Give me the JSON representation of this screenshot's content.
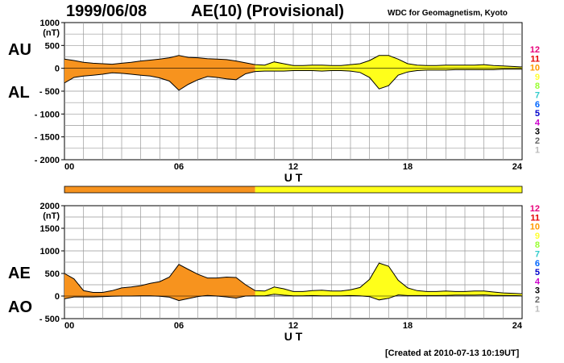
{
  "header": {
    "date": "1999/06/08",
    "index": "AE(10) (Provisional)",
    "source": "WDC for Geomagnetism, Kyoto"
  },
  "footer": "[Created at 2010-07-13 10:19UT]",
  "colors": {
    "completed": "#f7931e",
    "provisional_part": "#ffff1a",
    "outline": "#000000",
    "grid": "#999999"
  },
  "legend": {
    "labels": [
      "12",
      "11",
      "10",
      "9",
      "8",
      "7",
      "6",
      "5",
      "4",
      "3",
      "2",
      "1"
    ],
    "colors": [
      "#e8007a",
      "#e60000",
      "#ff9900",
      "#ffff33",
      "#99ff33",
      "#33cccc",
      "#0066ff",
      "#0000cc",
      "#cc00cc",
      "#000000",
      "#666666",
      "#bbbbbb"
    ]
  },
  "chart_data": [
    {
      "type": "area",
      "panel": "AU/AL",
      "xlabel": "U T",
      "x_ticks": [
        "00",
        "06",
        "12",
        "18",
        "24"
      ],
      "xlim": [
        0,
        24
      ],
      "y_ticks": [
        "1000",
        "500",
        "0",
        "- 500",
        "- 1000",
        "- 1500",
        "- 2000"
      ],
      "y_unit": "(nT)",
      "ylim": [
        -2000,
        1000
      ],
      "side_labels": [
        "AU",
        "AL"
      ],
      "color_split_hour": 10,
      "x": [
        0,
        0.5,
        1,
        1.5,
        2,
        2.5,
        3,
        3.5,
        4,
        4.5,
        5,
        5.5,
        6,
        6.5,
        7,
        7.5,
        8,
        8.5,
        9,
        9.5,
        10,
        10.5,
        11,
        11.5,
        12,
        12.5,
        13,
        13.5,
        14,
        14.5,
        15,
        15.5,
        16,
        16.5,
        17,
        17.5,
        18,
        18.5,
        19,
        19.5,
        20,
        20.5,
        21,
        21.5,
        22,
        22.5,
        23,
        23.5,
        24
      ],
      "series": [
        {
          "name": "AU",
          "values": [
            200,
            170,
            130,
            110,
            100,
            90,
            110,
            130,
            160,
            180,
            200,
            230,
            280,
            240,
            230,
            210,
            200,
            190,
            160,
            120,
            80,
            70,
            140,
            100,
            60,
            60,
            70,
            70,
            60,
            60,
            80,
            100,
            170,
            280,
            280,
            200,
            100,
            70,
            60,
            60,
            70,
            70,
            70,
            70,
            80,
            60,
            50,
            40,
            30
          ]
        },
        {
          "name": "AL",
          "values": [
            -320,
            -200,
            -170,
            -150,
            -130,
            -100,
            -110,
            -130,
            -150,
            -170,
            -210,
            -280,
            -480,
            -350,
            -250,
            -180,
            -200,
            -230,
            -250,
            -120,
            -70,
            -60,
            -60,
            -60,
            -50,
            -50,
            -50,
            -60,
            -50,
            -50,
            -60,
            -90,
            -200,
            -450,
            -380,
            -150,
            -80,
            -50,
            -40,
            -40,
            -40,
            -30,
            -30,
            -30,
            -30,
            -30,
            -20,
            -20,
            -20
          ]
        }
      ]
    },
    {
      "type": "area",
      "panel": "AE/AO",
      "xlabel": "U T",
      "x_ticks": [
        "00",
        "06",
        "12",
        "18",
        "24"
      ],
      "xlim": [
        0,
        24
      ],
      "y_ticks": [
        "2000",
        "1500",
        "1000",
        "500",
        "0",
        "- 500"
      ],
      "y_unit": "(nT)",
      "ylim": [
        -500,
        2000
      ],
      "side_labels": [
        "AE",
        "AO"
      ],
      "color_split_hour": 10,
      "x": [
        0,
        0.5,
        1,
        1.5,
        2,
        2.5,
        3,
        3.5,
        4,
        4.5,
        5,
        5.5,
        6,
        6.5,
        7,
        7.5,
        8,
        8.5,
        9,
        9.5,
        10,
        10.5,
        11,
        11.5,
        12,
        12.5,
        13,
        13.5,
        14,
        14.5,
        15,
        15.5,
        16,
        16.5,
        17,
        17.5,
        18,
        18.5,
        19,
        19.5,
        20,
        20.5,
        21,
        21.5,
        22,
        22.5,
        23,
        23.5,
        24
      ],
      "series": [
        {
          "name": "AE",
          "values": [
            500,
            380,
            120,
            80,
            80,
            120,
            180,
            200,
            230,
            280,
            320,
            420,
            700,
            590,
            480,
            400,
            400,
            420,
            410,
            250,
            120,
            110,
            200,
            160,
            100,
            100,
            120,
            130,
            110,
            110,
            140,
            190,
            370,
            730,
            660,
            350,
            180,
            120,
            100,
            100,
            110,
            100,
            100,
            110,
            110,
            90,
            70,
            60,
            50
          ]
        },
        {
          "name": "AO",
          "values": [
            -60,
            -20,
            -20,
            -20,
            -15,
            -5,
            0,
            0,
            5,
            5,
            -5,
            -25,
            -100,
            -55,
            -10,
            15,
            0,
            -20,
            -45,
            0,
            5,
            5,
            40,
            20,
            5,
            5,
            10,
            5,
            5,
            5,
            10,
            5,
            -15,
            -85,
            -50,
            25,
            10,
            10,
            10,
            10,
            15,
            20,
            20,
            20,
            25,
            15,
            15,
            10,
            5
          ]
        }
      ]
    }
  ]
}
